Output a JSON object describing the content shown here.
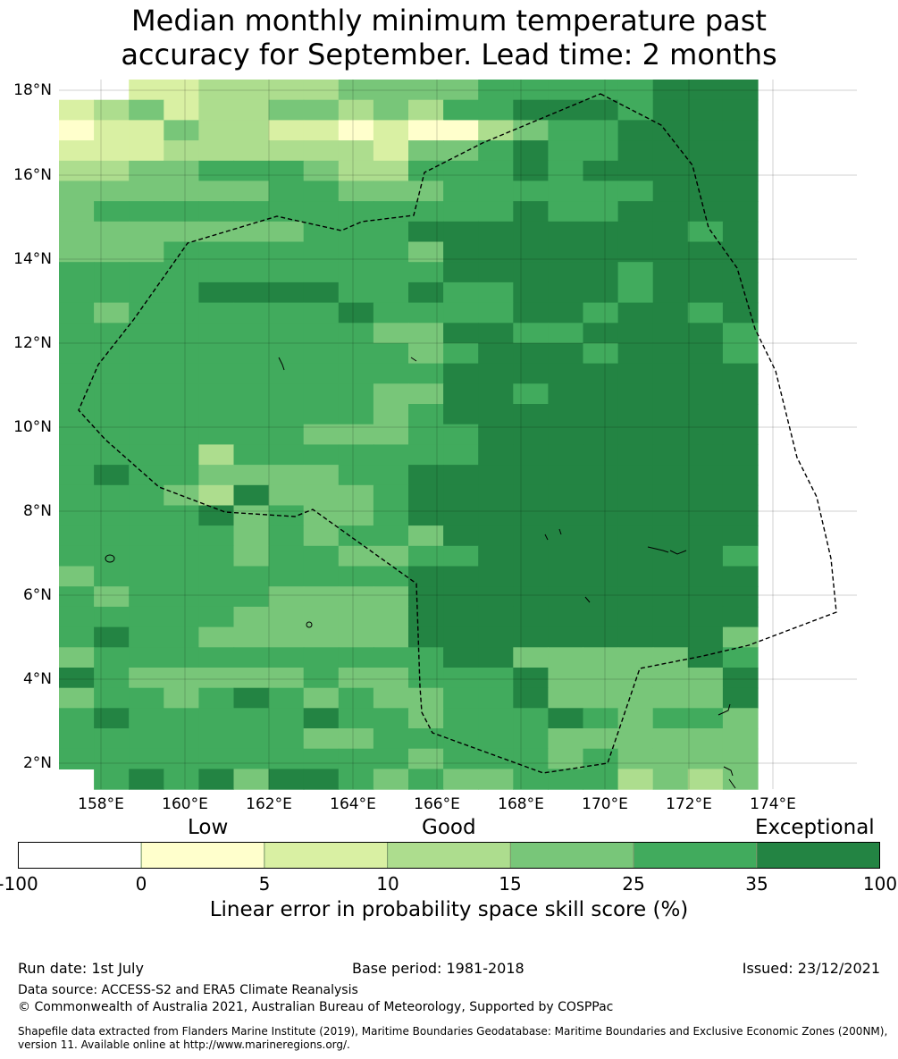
{
  "title_line1": "Median monthly minimum temperature past",
  "title_line2": "accuracy for September. Lead time: 2 months",
  "lat_labels": [
    "18°N",
    "16°N",
    "14°N",
    "12°N",
    "10°N",
    "8°N",
    "6°N",
    "4°N",
    "2°N"
  ],
  "lon_labels": [
    "158°E",
    "160°E",
    "162°E",
    "164°E",
    "166°E",
    "168°E",
    "170°E",
    "172°E",
    "174°E"
  ],
  "colorbar": {
    "categories": [
      "Low",
      "Good",
      "Exceptional"
    ],
    "ticks": [
      "-100",
      "0",
      "5",
      "10",
      "15",
      "25",
      "35",
      "100"
    ],
    "colors": [
      "#ffffff",
      "#ffffcc",
      "#d9f0a3",
      "#addd8e",
      "#78c679",
      "#41ab5d",
      "#238443"
    ],
    "caption": "Linear error in probability space skill score (%)"
  },
  "footer": {
    "run_date": "Run date: 1st July",
    "base_period": "Base period: 1981-2018",
    "issued": "Issued: 23/12/2021",
    "data_source": "Data source: ACCESS-S2 and ERA5 Climate Reanalysis",
    "copyright": "© Commonwealth of Australia 2021, Australian Bureau of Meteorology, Supported by COSPPac",
    "shapefile_1": "Shapefile data extracted from Flanders Marine Institute (2019), Maritime Boundaries Geodatabase: Maritime Boundaries and Exclusive Economic Zones (200NM),",
    "shapefile_2": "version 11. Available online at http://www.marineregions.org/."
  },
  "map_grid": [
    "-223333444455555666",
    "23423344343556665666",
    "12243322121134556666",
    "22233333324456556666",
    "33445554335556566666",
    "44444455444555555666",
    "45555555555556556666",
    "44444445556666666656",
    "44455555554666666666",
    "55555555555666665666",
    "55556666556556665666",
    "54555555655556656656",
    "55555555544665566665",
    "55555555554566656665",
    "55555555555666666666",
    "55555555544665666666",
    "55555555545666666666",
    "55555554445566666666",
    "55553555555566666666",
    "56554444556666666666",
    "55543644456666666666",
    "55556454456666666666",
    "55555454554666666666",
    "55555455445566666665",
    "45555555556666666666",
    "54555544446666666666",
    "55555444446666666666",
    "56554444446666666664",
    "45555555555664444465",
    "65444445445556444446",
    "45545654544556444446",
    "56555556554555654554",
    "55555554455555444444",
    "55555555554555454444",
    "5656466545445553434"
  ]
}
